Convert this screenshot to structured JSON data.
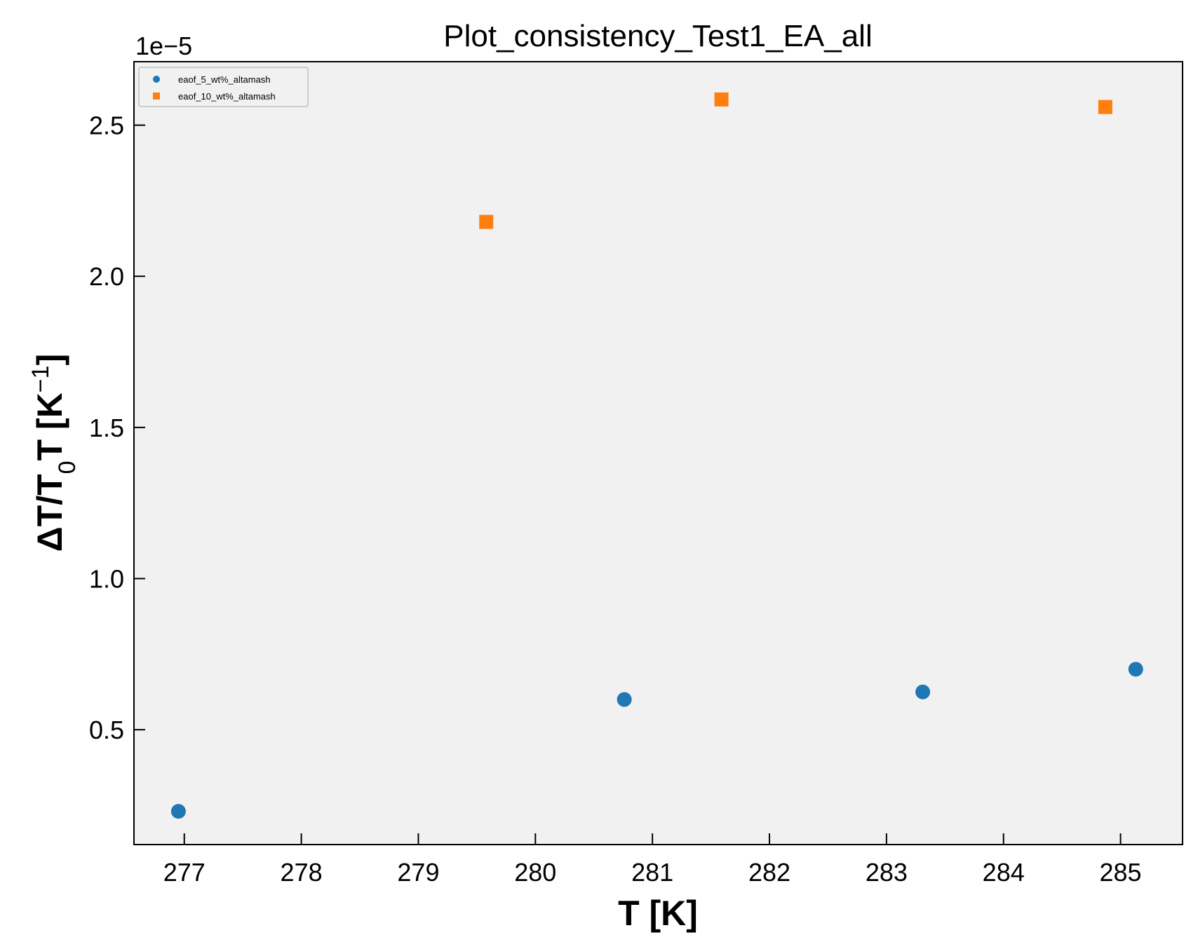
{
  "chart_data": {
    "type": "scatter",
    "title": "Plot_consistency_Test1_EA_all",
    "xlabel": "T [K]",
    "ylabel": "ΔT/T₀T [K⁻¹]",
    "y_offset_label": "1e−5",
    "xlim": [
      276.57,
      285.53
    ],
    "ylim": [
      0.12,
      2.71
    ],
    "x_ticks": [
      277,
      278,
      279,
      280,
      281,
      282,
      283,
      284,
      285
    ],
    "x_tick_labels": [
      "277",
      "278",
      "279",
      "280",
      "281",
      "282",
      "283",
      "284",
      "285"
    ],
    "y_ticks": [
      0.5,
      1.0,
      1.5,
      2.0,
      2.5
    ],
    "y_tick_labels": [
      "0.5",
      "1.0",
      "1.5",
      "2.0",
      "2.5"
    ],
    "legend_position": "top-left",
    "grid": false,
    "series": [
      {
        "name": "eaof_5_wt%_altamash",
        "marker": "circle",
        "color": "#1f77b4",
        "points": [
          {
            "x": 276.95,
            "y": 0.23
          },
          {
            "x": 280.76,
            "y": 0.6
          },
          {
            "x": 283.31,
            "y": 0.625
          },
          {
            "x": 285.13,
            "y": 0.7
          }
        ]
      },
      {
        "name": "eaof_10_wt%_altamash",
        "marker": "square",
        "color": "#ff7f0e",
        "points": [
          {
            "x": 279.58,
            "y": 2.18
          },
          {
            "x": 281.59,
            "y": 2.585
          },
          {
            "x": 284.87,
            "y": 2.56
          }
        ]
      }
    ]
  }
}
